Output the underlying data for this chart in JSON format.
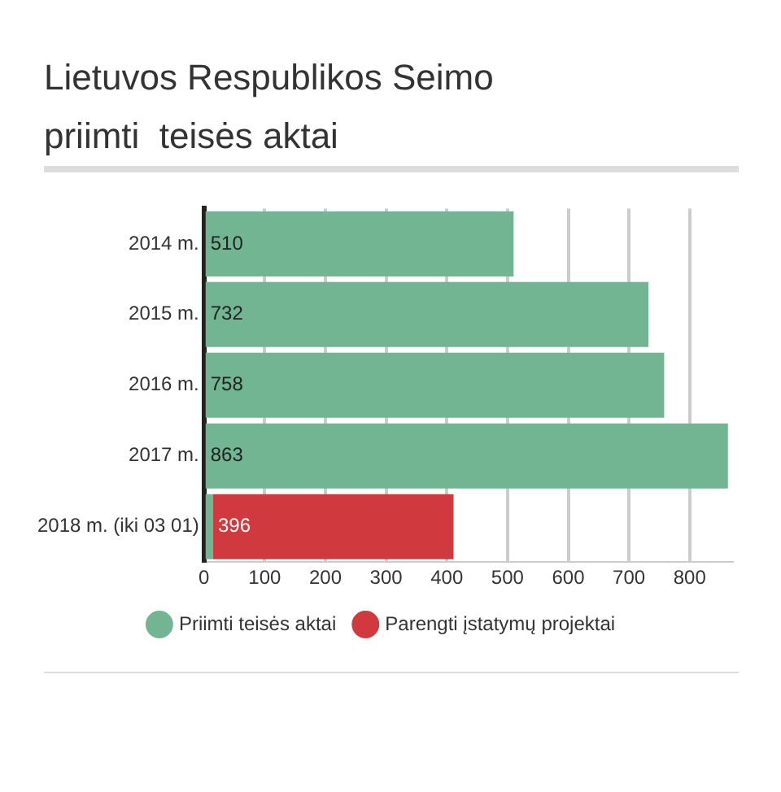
{
  "chart_data": {
    "type": "bar",
    "title": "Lietuvos Respublikos Seimo\npriimti  teisės aktai",
    "orientation": "horizontal",
    "stacked": true,
    "categories": [
      "2014 m.",
      "2015 m.",
      "2016 m.",
      "2017 m.",
      "2018 m. (iki 03 01)"
    ],
    "series": [
      {
        "name": "Priimti teisės aktai",
        "color": "#72b592",
        "values": [
          510,
          732,
          758,
          863,
          15
        ],
        "value_labels": [
          "510",
          "732",
          "758",
          "863",
          null
        ]
      },
      {
        "name": "Parengti įstatymų projektai",
        "color": "#d0393e",
        "values": [
          null,
          null,
          null,
          null,
          396
        ],
        "value_labels": [
          null,
          null,
          null,
          null,
          "396"
        ]
      }
    ],
    "xlim": [
      0,
      870
    ],
    "xticks": [
      0,
      100,
      200,
      300,
      400,
      500,
      600,
      700,
      800
    ],
    "grid": "x",
    "legend": "bottom"
  }
}
